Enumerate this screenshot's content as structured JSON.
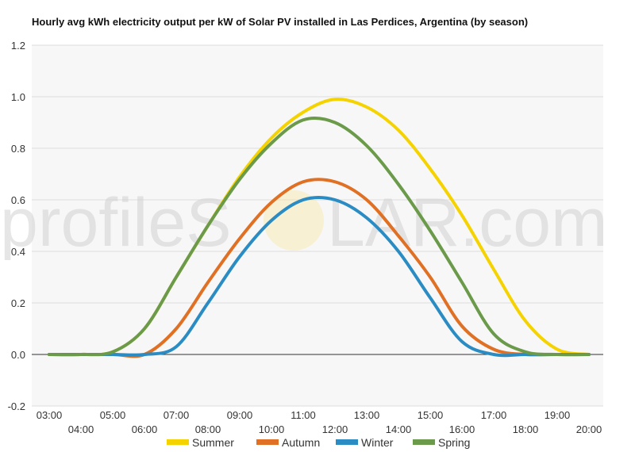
{
  "chart_data": {
    "type": "line",
    "title": "Hourly avg kWh electricity output per kW of Solar PV installed in Las Perdices, Argentina (by season)",
    "xlabel": "",
    "ylabel": "",
    "ylim": [
      -0.2,
      1.2
    ],
    "yticks": [
      "1.2",
      "1.0",
      "0.8",
      "0.6",
      "0.4",
      "0.2",
      "0.0",
      "-0.2"
    ],
    "grid": true,
    "legend_position": "bottom",
    "categories": [
      "03:00",
      "04:00",
      "05:00",
      "06:00",
      "07:00",
      "08:00",
      "09:00",
      "10:00",
      "11:00",
      "12:00",
      "13:00",
      "14:00",
      "15:00",
      "16:00",
      "17:00",
      "18:00",
      "19:00",
      "20:00"
    ],
    "series": [
      {
        "name": "Summer",
        "color": "#f5d300",
        "values": [
          0,
          0,
          0.01,
          0.1,
          0.3,
          0.5,
          0.69,
          0.84,
          0.94,
          0.99,
          0.96,
          0.87,
          0.72,
          0.54,
          0.33,
          0.13,
          0.02,
          0
        ]
      },
      {
        "name": "Autumn",
        "color": "#e07023",
        "values": [
          0,
          0,
          0,
          0,
          0.1,
          0.28,
          0.45,
          0.59,
          0.67,
          0.67,
          0.6,
          0.46,
          0.3,
          0.11,
          0.02,
          0,
          0,
          0
        ]
      },
      {
        "name": "Winter",
        "color": "#2b8cc4",
        "values": [
          0,
          0,
          0,
          0,
          0.03,
          0.2,
          0.38,
          0.52,
          0.6,
          0.6,
          0.53,
          0.4,
          0.22,
          0.05,
          0,
          0,
          0,
          0
        ]
      },
      {
        "name": "Spring",
        "color": "#6b9a4a",
        "values": [
          0,
          0,
          0.01,
          0.1,
          0.3,
          0.5,
          0.68,
          0.82,
          0.91,
          0.9,
          0.81,
          0.66,
          0.48,
          0.28,
          0.08,
          0.01,
          0,
          0
        ]
      }
    ]
  },
  "watermark": {
    "text_left": "profileS",
    "text_right": "LAR.com"
  }
}
